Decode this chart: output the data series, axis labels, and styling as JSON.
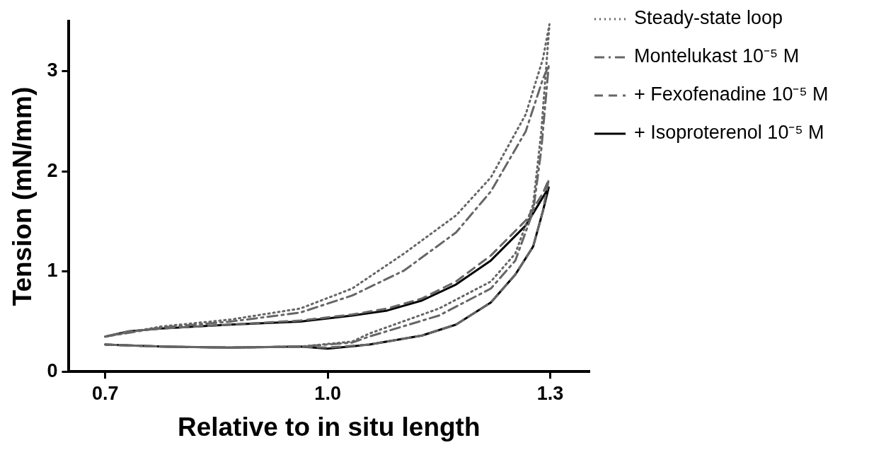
{
  "chart_data": {
    "type": "line",
    "xlabel": "Relative to in situ length",
    "ylabel": "Tension (mN/mm)",
    "xlim": [
      0.651,
      1.352
    ],
    "xticks": [
      {
        "value": 0.7,
        "label": "0.7"
      },
      {
        "value": 1.0,
        "label": "1.0"
      },
      {
        "value": 1.3,
        "label": "1.3"
      }
    ],
    "ylim": [
      0,
      3.5
    ],
    "yticks": [
      0,
      1,
      2,
      3
    ],
    "grid": false,
    "legend": "top right",
    "marker": "none",
    "series": [
      {
        "name": "Steady-state loop",
        "color": "#666666",
        "line_style": "dotted",
        "x": [
          0.7,
          0.775,
          0.869,
          0.963,
          1.033,
          1.056,
          1.15,
          1.22,
          1.253,
          1.277,
          1.288,
          1.299,
          1.29,
          1.267,
          1.22,
          1.173,
          1.103,
          1.033,
          0.963,
          0.869,
          0.775,
          0.7
        ],
        "values": [
          0.27,
          0.25,
          0.24,
          0.25,
          0.3,
          0.38,
          0.63,
          0.9,
          1.18,
          1.67,
          2.4,
          3.47,
          3.12,
          2.57,
          1.94,
          1.56,
          1.18,
          0.83,
          0.63,
          0.52,
          0.45,
          0.35
        ]
      },
      {
        "name": "Montelukast 10⁻⁵ M",
        "color": "#666666",
        "line_style": "dashdot",
        "x": [
          0.7,
          0.775,
          0.869,
          0.963,
          1.033,
          1.056,
          1.15,
          1.22,
          1.253,
          1.277,
          1.288,
          1.298,
          1.29,
          1.267,
          1.22,
          1.173,
          1.103,
          1.033,
          0.963,
          0.869,
          0.775,
          0.7
        ],
        "values": [
          0.27,
          0.25,
          0.24,
          0.25,
          0.29,
          0.35,
          0.56,
          0.83,
          1.11,
          1.6,
          2.22,
          3.06,
          2.92,
          2.4,
          1.8,
          1.39,
          1.01,
          0.76,
          0.59,
          0.5,
          0.44,
          0.35
        ]
      },
      {
        "name": "+ Fexofenadine 10⁻⁵ M",
        "color": "#666666",
        "line_style": "dashed",
        "x": [
          0.7,
          0.775,
          0.869,
          0.963,
          1.0,
          1.056,
          1.127,
          1.173,
          1.22,
          1.253,
          1.277,
          1.29,
          1.298,
          1.29,
          1.267,
          1.22,
          1.173,
          1.127,
          1.08,
          1.033,
          0.963,
          0.869,
          0.775,
          0.73,
          0.7
        ],
        "values": [
          0.27,
          0.25,
          0.24,
          0.25,
          0.24,
          0.27,
          0.36,
          0.47,
          0.69,
          0.97,
          1.25,
          1.6,
          1.92,
          1.78,
          1.51,
          1.16,
          0.9,
          0.73,
          0.63,
          0.57,
          0.51,
          0.47,
          0.43,
          0.4,
          0.35
        ]
      },
      {
        "name": "+ Isoproterenol 10⁻⁵ M",
        "color": "#000000",
        "line_style": "solid",
        "x": [
          0.7,
          0.775,
          0.869,
          0.963,
          1.0,
          1.056,
          1.127,
          1.173,
          1.22,
          1.253,
          1.277,
          1.29,
          1.298,
          1.29,
          1.267,
          1.22,
          1.173,
          1.127,
          1.08,
          1.033,
          0.963,
          0.869,
          0.775,
          0.73,
          0.7
        ],
        "values": [
          0.27,
          0.25,
          0.24,
          0.25,
          0.23,
          0.27,
          0.36,
          0.47,
          0.69,
          0.97,
          1.25,
          1.6,
          1.84,
          1.74,
          1.46,
          1.11,
          0.87,
          0.71,
          0.61,
          0.56,
          0.5,
          0.47,
          0.43,
          0.4,
          0.35
        ]
      }
    ]
  }
}
